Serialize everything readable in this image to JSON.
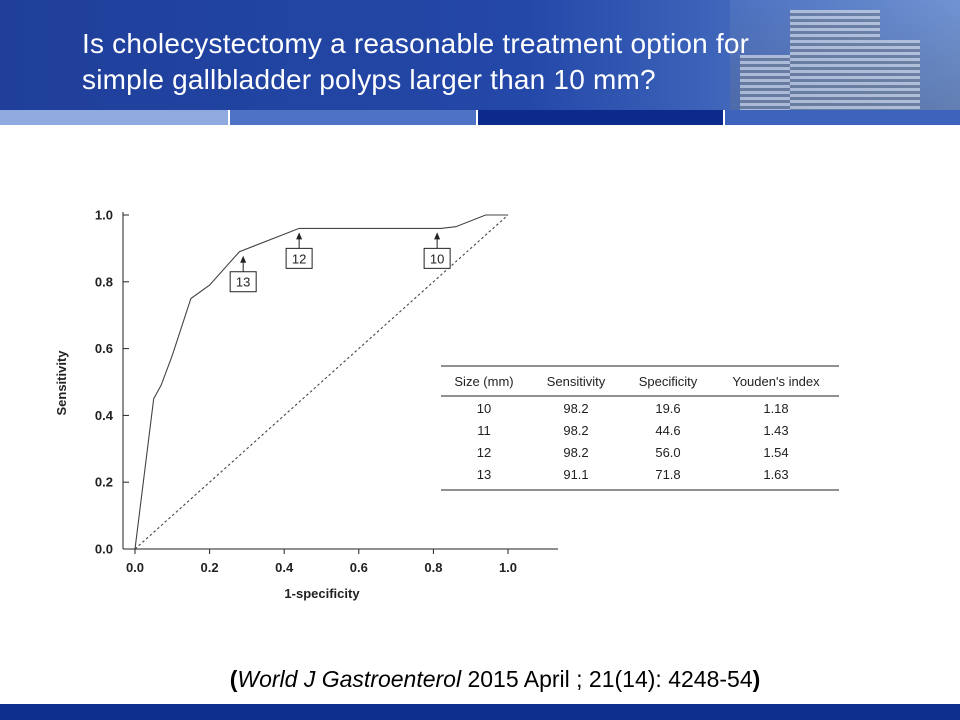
{
  "slide": {
    "title_line1": "Is cholecystectomy a reasonable treatment option for",
    "title_line2": "simple gallbladder polyps larger than 10 mm?",
    "citation_open": "(",
    "citation_journal": "World J Gastroenterol",
    "citation_rest": " 2015 April ; 21(14): 4248-54",
    "citation_close": ")"
  },
  "colors": {
    "header_blue": "#2448a8",
    "footer_blue": "#0f2f8f",
    "curve": "#444444"
  },
  "chart_data": {
    "type": "line",
    "xlabel": "1-specificity",
    "ylabel": "Sensitivity",
    "xlim": [
      0,
      1
    ],
    "ylim": [
      0,
      1
    ],
    "x_ticks": [
      "0.0",
      "0.2",
      "0.4",
      "0.6",
      "0.8",
      "1.0"
    ],
    "y_ticks": [
      "0.0",
      "0.2",
      "0.4",
      "0.6",
      "0.8",
      "1.0"
    ],
    "grid": false,
    "series": [
      {
        "style": "solid",
        "points": [
          [
            0,
            0
          ],
          [
            0.05,
            0.45
          ],
          [
            0.07,
            0.49
          ],
          [
            0.1,
            0.58
          ],
          [
            0.15,
            0.75
          ],
          [
            0.2,
            0.79
          ],
          [
            0.28,
            0.89
          ],
          [
            0.44,
            0.96
          ],
          [
            0.56,
            0.96
          ],
          [
            0.82,
            0.96
          ],
          [
            0.86,
            0.965
          ],
          [
            0.94,
            1.0
          ],
          [
            1.0,
            1.0
          ]
        ]
      },
      {
        "style": "dashed",
        "points": [
          [
            0,
            0
          ],
          [
            1,
            1
          ]
        ]
      }
    ],
    "annotations": [
      {
        "label": "13",
        "x": 0.29,
        "y": 0.89,
        "box_below": true
      },
      {
        "label": "12",
        "x": 0.44,
        "y": 0.96,
        "box_below": true
      },
      {
        "label": "10",
        "x": 0.81,
        "y": 0.96,
        "box_below": true
      }
    ],
    "table": {
      "columns": [
        "Size (mm)",
        "Sensitivity",
        "Specificity",
        "Youden's index"
      ],
      "rows": [
        [
          "10",
          "98.2",
          "19.6",
          "1.18"
        ],
        [
          "11",
          "98.2",
          "44.6",
          "1.43"
        ],
        [
          "12",
          "98.2",
          "56.0",
          "1.54"
        ],
        [
          "13",
          "91.1",
          "71.8",
          "1.63"
        ]
      ]
    }
  }
}
